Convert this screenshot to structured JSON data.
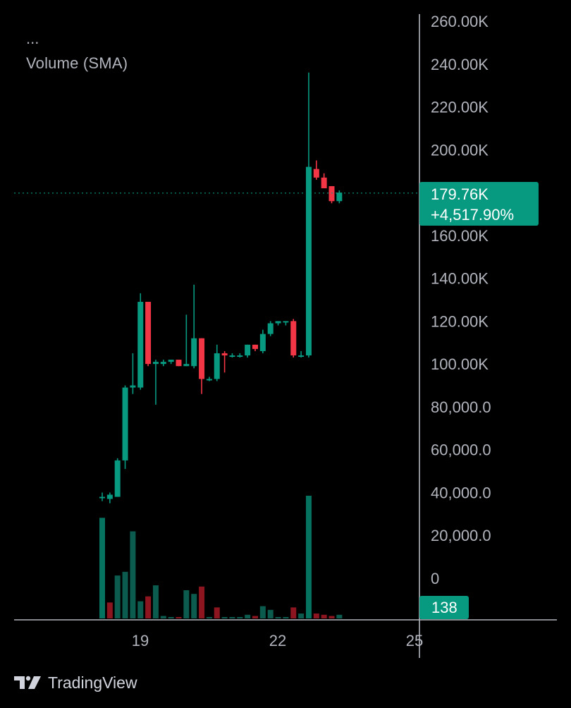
{
  "header": {
    "dots": "...",
    "indicator_label": "Volume (SMA)"
  },
  "price_badge": {
    "price": "179.76K",
    "change": "+4,517.90%"
  },
  "volume_badge": {
    "value": "138"
  },
  "brand": {
    "name": "TradingView"
  },
  "colors": {
    "background": "#000000",
    "up": "#089981",
    "down": "#f23645",
    "volume_up": "#0b5b4e",
    "volume_down": "#8c1520",
    "axis_text": "#b2b5be",
    "axis_line": "#b2b5be"
  },
  "chart_data": {
    "type": "candlestick",
    "y_axis": {
      "min": 0,
      "max": 260000,
      "tick_labels": [
        "260.00K",
        "240.00K",
        "220.00K",
        "200.00K",
        "160.00K",
        "140.00K",
        "120.00K",
        "100.00K",
        "80,000.0",
        "60,000.0",
        "40,000.0",
        "20,000.0",
        "0"
      ]
    },
    "x_axis": {
      "tick_labels": [
        "19",
        "22",
        "25"
      ]
    },
    "current_price": 179760,
    "candles": [
      {
        "o": 38000,
        "h": 40000,
        "l": 36000,
        "c": 38000
      },
      {
        "o": 37000,
        "h": 40000,
        "l": 35000,
        "c": 39000
      },
      {
        "o": 38000,
        "h": 56000,
        "l": 38000,
        "c": 55000
      },
      {
        "o": 55000,
        "h": 90000,
        "l": 51000,
        "c": 89000
      },
      {
        "o": 89000,
        "h": 105000,
        "l": 86000,
        "c": 90000
      },
      {
        "o": 89000,
        "h": 133000,
        "l": 88000,
        "c": 129000
      },
      {
        "o": 129000,
        "h": 129000,
        "l": 99000,
        "c": 100000
      },
      {
        "o": 100000,
        "h": 102000,
        "l": 81000,
        "c": 101000
      },
      {
        "o": 100000,
        "h": 102000,
        "l": 99000,
        "c": 101000
      },
      {
        "o": 101000,
        "h": 102000,
        "l": 100000,
        "c": 102000
      },
      {
        "o": 102000,
        "h": 102000,
        "l": 99000,
        "c": 99000
      },
      {
        "o": 99000,
        "h": 123000,
        "l": 99000,
        "c": 100000
      },
      {
        "o": 99000,
        "h": 137000,
        "l": 98000,
        "c": 112000
      },
      {
        "o": 112000,
        "h": 112000,
        "l": 86000,
        "c": 93000
      },
      {
        "o": 93000,
        "h": 94000,
        "l": 92000,
        "c": 93000
      },
      {
        "o": 93000,
        "h": 109000,
        "l": 92000,
        "c": 105000
      },
      {
        "o": 105000,
        "h": 106000,
        "l": 96000,
        "c": 104000
      },
      {
        "o": 104000,
        "h": 105000,
        "l": 103000,
        "c": 104000
      },
      {
        "o": 104000,
        "h": 105000,
        "l": 103000,
        "c": 104000
      },
      {
        "o": 104000,
        "h": 109000,
        "l": 103000,
        "c": 109000
      },
      {
        "o": 109000,
        "h": 109000,
        "l": 106000,
        "c": 107000
      },
      {
        "o": 106000,
        "h": 116000,
        "l": 105000,
        "c": 114000
      },
      {
        "o": 114000,
        "h": 120000,
        "l": 113000,
        "c": 119000
      },
      {
        "o": 119000,
        "h": 120000,
        "l": 118000,
        "c": 120000
      },
      {
        "o": 120000,
        "h": 120000,
        "l": 118000,
        "c": 120000
      },
      {
        "o": 120000,
        "h": 121000,
        "l": 103000,
        "c": 104000
      },
      {
        "o": 104000,
        "h": 106000,
        "l": 103000,
        "c": 104000
      },
      {
        "o": 104000,
        "h": 236000,
        "l": 103000,
        "c": 192000
      },
      {
        "o": 191000,
        "h": 195000,
        "l": 186000,
        "c": 187000
      },
      {
        "o": 187000,
        "h": 189000,
        "l": 182000,
        "c": 182000
      },
      {
        "o": 183000,
        "h": 183000,
        "l": 175000,
        "c": 176000
      },
      {
        "o": 176000,
        "h": 181000,
        "l": 175000,
        "c": 180000
      }
    ],
    "volume": {
      "max_axis": 100,
      "bars": [
        {
          "v": 82,
          "dir": "up",
          "highlight": true
        },
        {
          "v": 13,
          "dir": "down"
        },
        {
          "v": 35,
          "dir": "up"
        },
        {
          "v": 38,
          "dir": "up"
        },
        {
          "v": 71,
          "dir": "up"
        },
        {
          "v": 14,
          "dir": "up"
        },
        {
          "v": 18,
          "dir": "down"
        },
        {
          "v": 27,
          "dir": "up"
        },
        {
          "v": 2,
          "dir": "up"
        },
        {
          "v": 1,
          "dir": "up"
        },
        {
          "v": 1,
          "dir": "down"
        },
        {
          "v": 23,
          "dir": "up"
        },
        {
          "v": 20,
          "dir": "up"
        },
        {
          "v": 26,
          "dir": "down"
        },
        {
          "v": 1,
          "dir": "up"
        },
        {
          "v": 9,
          "dir": "down"
        },
        {
          "v": 1,
          "dir": "up"
        },
        {
          "v": 1,
          "dir": "up"
        },
        {
          "v": 1,
          "dir": "up"
        },
        {
          "v": 3,
          "dir": "up"
        },
        {
          "v": 2,
          "dir": "down"
        },
        {
          "v": 10,
          "dir": "up"
        },
        {
          "v": 7,
          "dir": "up"
        },
        {
          "v": 1,
          "dir": "up"
        },
        {
          "v": 1,
          "dir": "up"
        },
        {
          "v": 9,
          "dir": "down"
        },
        {
          "v": 4,
          "dir": "up"
        },
        {
          "v": 100,
          "dir": "up",
          "highlight": true
        },
        {
          "v": 4,
          "dir": "down"
        },
        {
          "v": 3,
          "dir": "down"
        },
        {
          "v": 2,
          "dir": "down"
        },
        {
          "v": 3,
          "dir": "up"
        }
      ]
    },
    "volume_current": 138
  }
}
